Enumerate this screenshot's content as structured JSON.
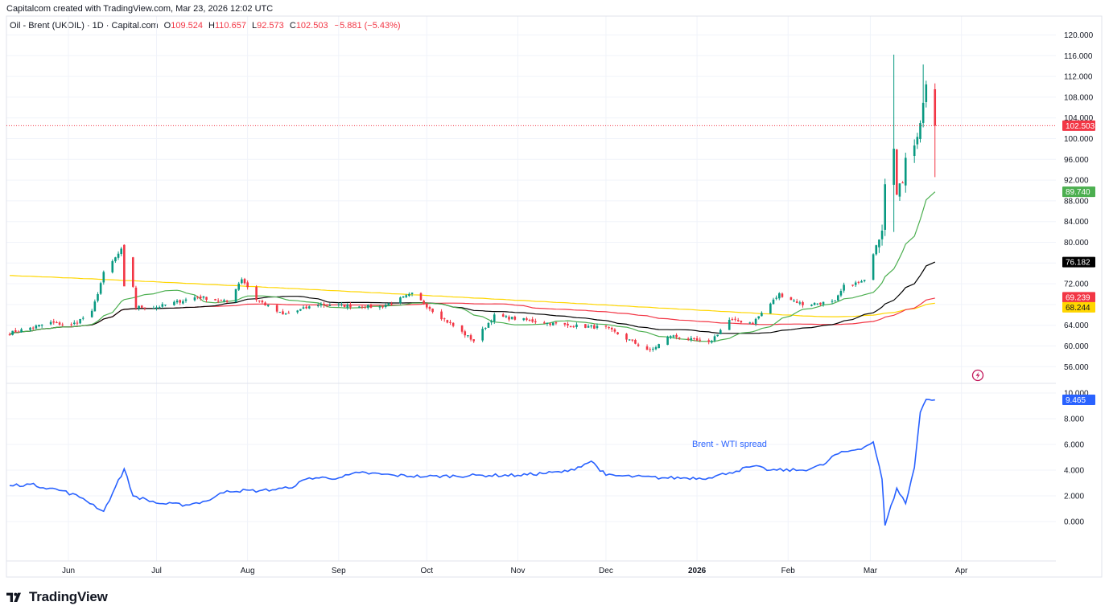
{
  "header": {
    "caption": "Capitalcom created with TradingView.com, Mar 23, 2026 12:02 UTC"
  },
  "legend": {
    "symbol": "Oil - Brent (UKOIL) · 1D · Capital.com",
    "open_key": "O",
    "open": "109.524",
    "high_key": "H",
    "high": "110.657",
    "low_key": "L",
    "low": "92.573",
    "close_key": "C",
    "close": "102.503",
    "change": "−5.881 (−5.43%)"
  },
  "colors": {
    "up": "#089981",
    "down": "#f23645",
    "ma_fast": "#4caf50",
    "ma_mid": "#000000",
    "ma_slow": "#f23645",
    "ma_long": "#ffd600",
    "spread_line": "#2962ff",
    "grid": "#f0f3fa",
    "last_price_line": "#f23645"
  },
  "price_axis": {
    "ticks": [
      "120.000",
      "116.000",
      "112.000",
      "108.000",
      "104.000",
      "100.000",
      "96.000",
      "92.000",
      "88.000",
      "84.000",
      "80.000",
      "76.000",
      "72.000",
      "68.000",
      "64.000",
      "60.000",
      "56.000"
    ]
  },
  "badges": {
    "last_price": "102.503",
    "ma_green": "89.740",
    "ma_black": "76.182",
    "ma_red": "69.239",
    "ma_yellow": "68.244",
    "spread_last": "9.465"
  },
  "spread_axis": {
    "ticks": [
      "10.000",
      "8.000",
      "6.000",
      "4.000",
      "2.000",
      "0.000"
    ]
  },
  "spread_label": "Brent - WTI spread",
  "time_axis": {
    "labels": [
      "Jun",
      "Jul",
      "Aug",
      "Sep",
      "Oct",
      "Nov",
      "Dec",
      "2026",
      "Feb",
      "Mar",
      "Apr"
    ]
  },
  "brand": {
    "name": "TradingView",
    "icon": "tradingview-logo-icon"
  },
  "misc_icons": {
    "flash": "lightning-icon"
  },
  "chart_data": [
    {
      "type": "candlestick",
      "title": "Oil - Brent (UKOIL) · 1D · Capital.com",
      "x_range": [
        "May 2025",
        "Apr 2026"
      ],
      "ylim": [
        54,
        122
      ],
      "grid": true,
      "anchors": [
        {
          "date": "2025-05-12",
          "close": 62.5
        },
        {
          "date": "2025-05-26",
          "close": 64.5
        },
        {
          "date": "2025-06-02",
          "close": 64.0
        },
        {
          "date": "2025-06-09",
          "close": 66.5
        },
        {
          "date": "2025-06-13",
          "close": 74.0
        },
        {
          "date": "2025-06-19",
          "close": 78.5
        },
        {
          "date": "2025-06-20",
          "close": 77.0
        },
        {
          "date": "2025-06-23",
          "close": 71.5
        },
        {
          "date": "2025-06-24",
          "close": 67.5
        },
        {
          "date": "2025-07-01",
          "close": 67.5
        },
        {
          "date": "2025-07-15",
          "close": 69.5
        },
        {
          "date": "2025-07-25",
          "close": 68.5
        },
        {
          "date": "2025-07-30",
          "close": 73.0
        },
        {
          "date": "2025-08-04",
          "close": 69.0
        },
        {
          "date": "2025-08-13",
          "close": 66.0
        },
        {
          "date": "2025-08-25",
          "close": 68.0
        },
        {
          "date": "2025-09-15",
          "close": 67.5
        },
        {
          "date": "2025-09-26",
          "close": 70.0
        },
        {
          "date": "2025-10-06",
          "close": 65.5
        },
        {
          "date": "2025-10-17",
          "close": 61.0
        },
        {
          "date": "2025-10-24",
          "close": 65.8
        },
        {
          "date": "2025-11-17",
          "close": 64.0
        },
        {
          "date": "2025-12-01",
          "close": 63.5
        },
        {
          "date": "2025-12-16",
          "close": 59.0
        },
        {
          "date": "2025-12-23",
          "close": 62.0
        },
        {
          "date": "2026-01-05",
          "close": 60.5
        },
        {
          "date": "2026-01-12",
          "close": 65.0
        },
        {
          "date": "2026-01-20",
          "close": 64.5
        },
        {
          "date": "2026-01-29",
          "close": 70.0
        },
        {
          "date": "2026-02-06",
          "close": 68.0
        },
        {
          "date": "2026-02-17",
          "close": 68.5
        },
        {
          "date": "2026-02-20",
          "close": 71.5
        },
        {
          "date": "2026-02-27",
          "close": 72.5
        },
        {
          "date": "2026-03-02",
          "close": 78.0
        },
        {
          "date": "2026-03-05",
          "close": 83.0
        },
        {
          "date": "2026-03-06",
          "close": 92.0
        },
        {
          "date": "2026-03-09",
          "close": 99.0
        },
        {
          "date": "2026-03-10",
          "close": 89.0
        },
        {
          "date": "2026-03-12",
          "close": 92.0
        },
        {
          "date": "2026-03-13",
          "close": 97.0
        },
        {
          "date": "2026-03-17",
          "close": 100.0
        },
        {
          "date": "2026-03-19",
          "close": 107.0
        },
        {
          "date": "2026-03-20",
          "close": 109.5
        },
        {
          "date": "2026-03-23",
          "close": 102.503
        }
      ],
      "last_bar": {
        "open": 109.524,
        "high": 110.657,
        "low": 92.573,
        "close": 102.503
      },
      "moving_averages": [
        {
          "color": "green",
          "last": 89.74
        },
        {
          "color": "black",
          "last": 76.182
        },
        {
          "color": "red",
          "last": 69.239
        },
        {
          "color": "yellow",
          "last": 68.244
        }
      ]
    },
    {
      "type": "line",
      "title": "Brent - WTI spread",
      "ylim": [
        -1,
        10.5
      ],
      "series": [
        {
          "name": "Brent - WTI spread",
          "points": [
            {
              "date": "2025-05-12",
              "value": 2.8
            },
            {
              "date": "2025-05-19",
              "value": 2.9
            },
            {
              "date": "2025-05-30",
              "value": 2.4
            },
            {
              "date": "2025-06-06",
              "value": 1.8
            },
            {
              "date": "2025-06-13",
              "value": 0.8
            },
            {
              "date": "2025-06-16",
              "value": 2.2
            },
            {
              "date": "2025-06-20",
              "value": 4.1
            },
            {
              "date": "2025-06-23",
              "value": 2.0
            },
            {
              "date": "2025-07-02",
              "value": 1.4
            },
            {
              "date": "2025-07-11",
              "value": 1.3
            },
            {
              "date": "2025-07-18",
              "value": 1.6
            },
            {
              "date": "2025-07-25",
              "value": 2.4
            },
            {
              "date": "2025-08-05",
              "value": 2.4
            },
            {
              "date": "2025-08-15",
              "value": 2.6
            },
            {
              "date": "2025-08-22",
              "value": 3.4
            },
            {
              "date": "2025-09-01",
              "value": 3.4
            },
            {
              "date": "2025-09-08",
              "value": 3.8
            },
            {
              "date": "2025-09-20",
              "value": 3.6
            },
            {
              "date": "2025-10-01",
              "value": 3.5
            },
            {
              "date": "2025-10-20",
              "value": 3.6
            },
            {
              "date": "2025-11-01",
              "value": 3.6
            },
            {
              "date": "2025-11-18",
              "value": 3.9
            },
            {
              "date": "2025-11-26",
              "value": 4.7
            },
            {
              "date": "2025-12-01",
              "value": 3.6
            },
            {
              "date": "2025-12-20",
              "value": 3.4
            },
            {
              "date": "2026-01-05",
              "value": 3.4
            },
            {
              "date": "2026-01-12",
              "value": 3.8
            },
            {
              "date": "2026-01-20",
              "value": 4.3
            },
            {
              "date": "2026-01-26",
              "value": 4.0
            },
            {
              "date": "2026-02-06",
              "value": 4.0
            },
            {
              "date": "2026-02-13",
              "value": 4.4
            },
            {
              "date": "2026-02-17",
              "value": 5.2
            },
            {
              "date": "2026-02-27",
              "value": 5.8
            },
            {
              "date": "2026-03-02",
              "value": 6.2
            },
            {
              "date": "2026-03-05",
              "value": 3.3
            },
            {
              "date": "2026-03-06",
              "value": -0.3
            },
            {
              "date": "2026-03-10",
              "value": 2.6
            },
            {
              "date": "2026-03-13",
              "value": 1.4
            },
            {
              "date": "2026-03-16",
              "value": 4.2
            },
            {
              "date": "2026-03-18",
              "value": 8.5
            },
            {
              "date": "2026-03-20",
              "value": 9.5
            },
            {
              "date": "2026-03-23",
              "value": 9.465
            }
          ]
        }
      ]
    }
  ]
}
